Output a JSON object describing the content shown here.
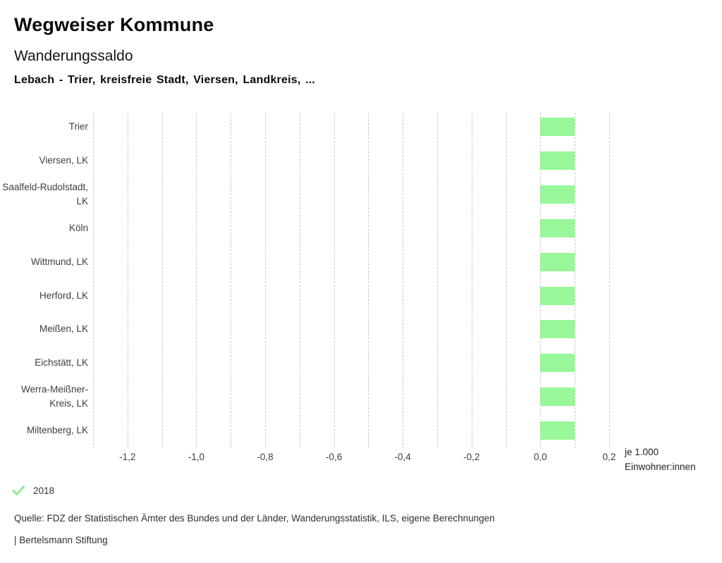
{
  "page": {
    "title": "Wegweiser Kommune",
    "subtitle": "Wanderungssaldo",
    "selection": "Lebach - Trier, kreisfreie Stadt, Viersen, Landkreis, ...",
    "source": "Quelle: FDZ der Statistischen Ämter des Bundes und der Länder, Wanderungsstatistik, ILS, eigene Berechnungen",
    "branding": "| Bertelsmann Stiftung"
  },
  "legend": {
    "icon": "check-icon",
    "label": "2018",
    "check_color": "#94ea94"
  },
  "chart_data": {
    "type": "bar",
    "orientation": "horizontal",
    "title": "Wanderungssaldo",
    "subtitle": "Lebach - Trier, kreisfreie Stadt, Viersen, Landkreis, ...",
    "categories": [
      "Trier",
      "Viersen, LK",
      "Saalfeld-Rudolstadt, LK",
      "Köln",
      "Wittmund, LK",
      "Herford, LK",
      "Meißen, LK",
      "Eichstätt, LK",
      "Werra-Meißner-Kreis, LK",
      "Miltenberg, LK"
    ],
    "series": [
      {
        "name": "2018",
        "color": "#98f798",
        "values": [
          0.1,
          0.1,
          0.1,
          0.1,
          0.1,
          0.1,
          0.1,
          0.1,
          0.1,
          0.1
        ]
      }
    ],
    "xlim": [
      -1.3,
      0.2
    ],
    "grid_step": 0.1,
    "grid": true,
    "grid_color": "#c7c7c7",
    "x_ticks": [
      {
        "value": -1.2,
        "label": "-1,2"
      },
      {
        "value": -1.0,
        "label": "-1,0"
      },
      {
        "value": -0.8,
        "label": "-0,8"
      },
      {
        "value": -0.6,
        "label": "-0,6"
      },
      {
        "value": -0.4,
        "label": "-0,4"
      },
      {
        "value": -0.2,
        "label": "-0,2"
      },
      {
        "value": 0.0,
        "label": "0,0"
      },
      {
        "value": 0.2,
        "label": "0,2"
      }
    ],
    "unit_label_lines": [
      "je 1.000",
      "Einwohner:innen"
    ],
    "legend_position": "bottom-left",
    "xlabel": "je 1.000 Einwohner:innen",
    "ylabel": ""
  }
}
